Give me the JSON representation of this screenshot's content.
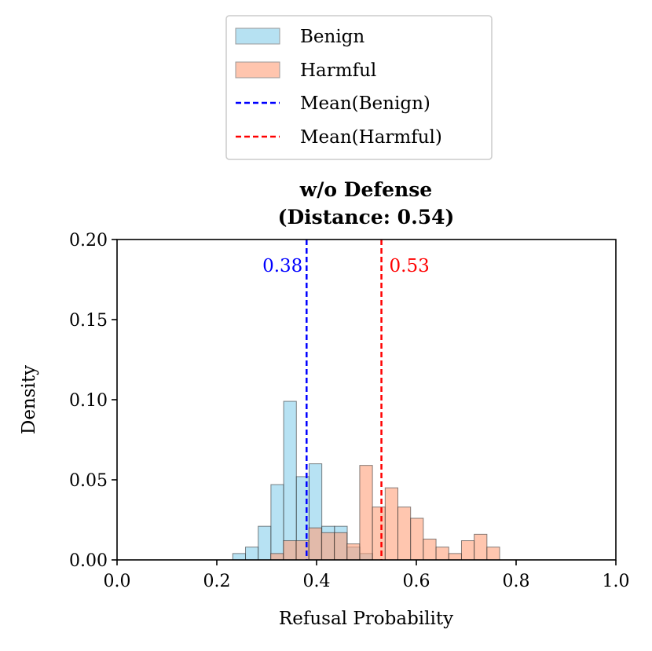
{
  "chart_data": {
    "type": "histogram",
    "title_line1": "w/o Defense",
    "title_line2": "(Distance: 0.54)",
    "xlabel": "Refusal Probability",
    "ylabel": "Density",
    "xlim": [
      0.0,
      1.0
    ],
    "ylim": [
      0.0,
      0.2
    ],
    "xticks": [
      0.0,
      0.2,
      0.4,
      0.6,
      0.8,
      1.0
    ],
    "xtick_labels": [
      "0.0",
      "0.2",
      "0.4",
      "0.6",
      "0.8",
      "1.0"
    ],
    "yticks": [
      0.0,
      0.05,
      0.1,
      0.15,
      0.2
    ],
    "ytick_labels": [
      "0.00",
      "0.05",
      "0.10",
      "0.15",
      "0.20"
    ],
    "bin_width": 0.0255,
    "series": [
      {
        "name": "Benign",
        "color": "#87CEEB",
        "bin_starts": [
          0.232,
          0.2575,
          0.283,
          0.3085,
          0.334,
          0.3595,
          0.385,
          0.4105,
          0.436,
          0.4615,
          0.487
        ],
        "values": [
          0.004,
          0.008,
          0.021,
          0.047,
          0.099,
          0.052,
          0.06,
          0.021,
          0.021,
          0.008,
          0.004
        ]
      },
      {
        "name": "Harmful",
        "color": "#FFA07A",
        "bin_starts": [
          0.308,
          0.3335,
          0.359,
          0.3845,
          0.41,
          0.4355,
          0.461,
          0.4865,
          0.512,
          0.5375,
          0.563,
          0.5885,
          0.614,
          0.6395,
          0.665,
          0.6905,
          0.716,
          0.7415
        ],
        "values": [
          0.004,
          0.012,
          0.012,
          0.02,
          0.017,
          0.017,
          0.01,
          0.059,
          0.033,
          0.045,
          0.033,
          0.026,
          0.013,
          0.008,
          0.004,
          0.012,
          0.016,
          0.008
        ]
      }
    ],
    "means": [
      {
        "name": "Mean(Benign)",
        "value": 0.38,
        "label": "0.38",
        "color": "#0000ff"
      },
      {
        "name": "Mean(Harmful)",
        "value": 0.53,
        "label": "0.53",
        "color": "#ff0000"
      }
    ],
    "legend": {
      "position": "top-center",
      "entries": [
        {
          "label": "Benign",
          "kind": "patch",
          "color": "#87CEEB"
        },
        {
          "label": "Harmful",
          "kind": "patch",
          "color": "#FFA07A"
        },
        {
          "label": "Mean(Benign)",
          "kind": "dashed-line",
          "color": "#0000ff"
        },
        {
          "label": "Mean(Harmful)",
          "kind": "dashed-line",
          "color": "#ff0000"
        }
      ]
    }
  }
}
